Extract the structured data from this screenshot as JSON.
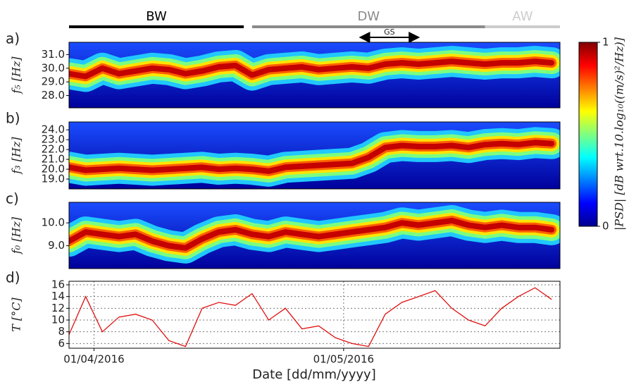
{
  "phases": [
    {
      "label": "BW",
      "start": "29/03/2016",
      "end": "19/04/2016",
      "color": "#000000"
    },
    {
      "label": "DW",
      "start": "20/04/2016",
      "end": "18/05/2016",
      "color": "#8a8a8a"
    },
    {
      "label": "AW",
      "start": "18/05/2016",
      "end": "27/05/2016",
      "color": "#cccccc"
    }
  ],
  "gs": {
    "label": "GS",
    "start": "03/05/2016",
    "end": "10/05/2016"
  },
  "colorbar": {
    "label": "|PSD| [dB wrt.10.log₁₀((m/s)²/Hz)]",
    "lim": [
      0,
      1
    ],
    "ticks": [
      0,
      1
    ]
  },
  "x_axis": {
    "label": "Date [dd/mm/yyyy]",
    "xlim": [
      "29/03/2016",
      "27/05/2016"
    ],
    "xticks": [
      "01/04/2016",
      "01/05/2016"
    ],
    "x": [
      "29/03/2016",
      "31/03/2016",
      "02/04/2016",
      "04/04/2016",
      "06/04/2016",
      "08/04/2016",
      "10/04/2016",
      "12/04/2016",
      "14/04/2016",
      "16/04/2016",
      "18/04/2016",
      "20/04/2016",
      "22/04/2016",
      "24/04/2016",
      "26/04/2016",
      "28/04/2016",
      "30/04/2016",
      "02/05/2016",
      "04/05/2016",
      "06/05/2016",
      "08/05/2016",
      "10/05/2016",
      "12/05/2016",
      "14/05/2016",
      "16/05/2016",
      "18/05/2016",
      "20/05/2016",
      "22/05/2016",
      "24/05/2016",
      "26/05/2016"
    ]
  },
  "chart_data": [
    {
      "type": "spectrogram",
      "panel": "a)",
      "ylabel": "f₅ [Hz]",
      "ylim": [
        27.1,
        31.9
      ],
      "yticks": [
        {
          "value": 28,
          "label": "28.0"
        },
        {
          "value": 29,
          "label": "29.0"
        },
        {
          "value": 30,
          "label": "30.0"
        },
        {
          "value": 31,
          "label": "31.0"
        }
      ],
      "values": [
        29.6,
        29.4,
        30.0,
        29.6,
        29.8,
        30.0,
        29.9,
        29.6,
        29.8,
        30.1,
        30.2,
        29.5,
        29.9,
        30.0,
        30.1,
        29.9,
        30.0,
        30.1,
        30.0,
        30.3,
        30.4,
        30.3,
        30.4,
        30.5,
        30.4,
        30.3,
        30.4,
        30.4,
        30.5,
        30.4
      ]
    },
    {
      "type": "spectrogram",
      "panel": "b)",
      "ylabel": "f₃ [Hz]",
      "ylim": [
        18.0,
        24.8
      ],
      "yticks": [
        {
          "value": 19,
          "label": "19.0"
        },
        {
          "value": 20,
          "label": "20.0"
        },
        {
          "value": 21,
          "label": "21.0"
        },
        {
          "value": 22,
          "label": "22.0"
        },
        {
          "value": 23,
          "label": "23.0"
        },
        {
          "value": 24,
          "label": "24.0"
        }
      ],
      "values": [
        20.2,
        19.9,
        20.0,
        20.1,
        20.0,
        19.9,
        20.0,
        20.1,
        20.2,
        20.0,
        20.1,
        20.0,
        19.8,
        20.2,
        20.3,
        20.4,
        20.5,
        20.6,
        21.2,
        22.2,
        22.4,
        22.3,
        22.3,
        22.4,
        22.2,
        22.5,
        22.6,
        22.5,
        22.7,
        22.6
      ]
    },
    {
      "type": "spectrogram",
      "panel": "c)",
      "ylabel": "f₀ [Hz]",
      "ylim": [
        8.0,
        10.9
      ],
      "yticks": [
        {
          "value": 9,
          "label": "9.0"
        },
        {
          "value": 10,
          "label": "10.0"
        }
      ],
      "values": [
        9.2,
        9.6,
        9.5,
        9.4,
        9.5,
        9.2,
        9.0,
        8.9,
        9.3,
        9.6,
        9.7,
        9.5,
        9.4,
        9.6,
        9.5,
        9.4,
        9.5,
        9.6,
        9.7,
        9.8,
        10.0,
        9.9,
        10.0,
        10.1,
        9.9,
        9.8,
        9.9,
        9.8,
        9.8,
        9.7
      ]
    },
    {
      "type": "line",
      "panel": "d)",
      "ylabel": "T [°C]",
      "ylim": [
        5.2,
        16.6
      ],
      "yticks": [
        6,
        8,
        10,
        12,
        14,
        16
      ],
      "grid": true,
      "color": "#e01010",
      "values": [
        7.5,
        14,
        8,
        10.5,
        11,
        10,
        6.5,
        5.5,
        12,
        13,
        12.5,
        14.5,
        10,
        12,
        8.5,
        9,
        7,
        6,
        5.5,
        11,
        13,
        14,
        15,
        12,
        10,
        9,
        12,
        14,
        15.5,
        13.5
      ]
    }
  ]
}
